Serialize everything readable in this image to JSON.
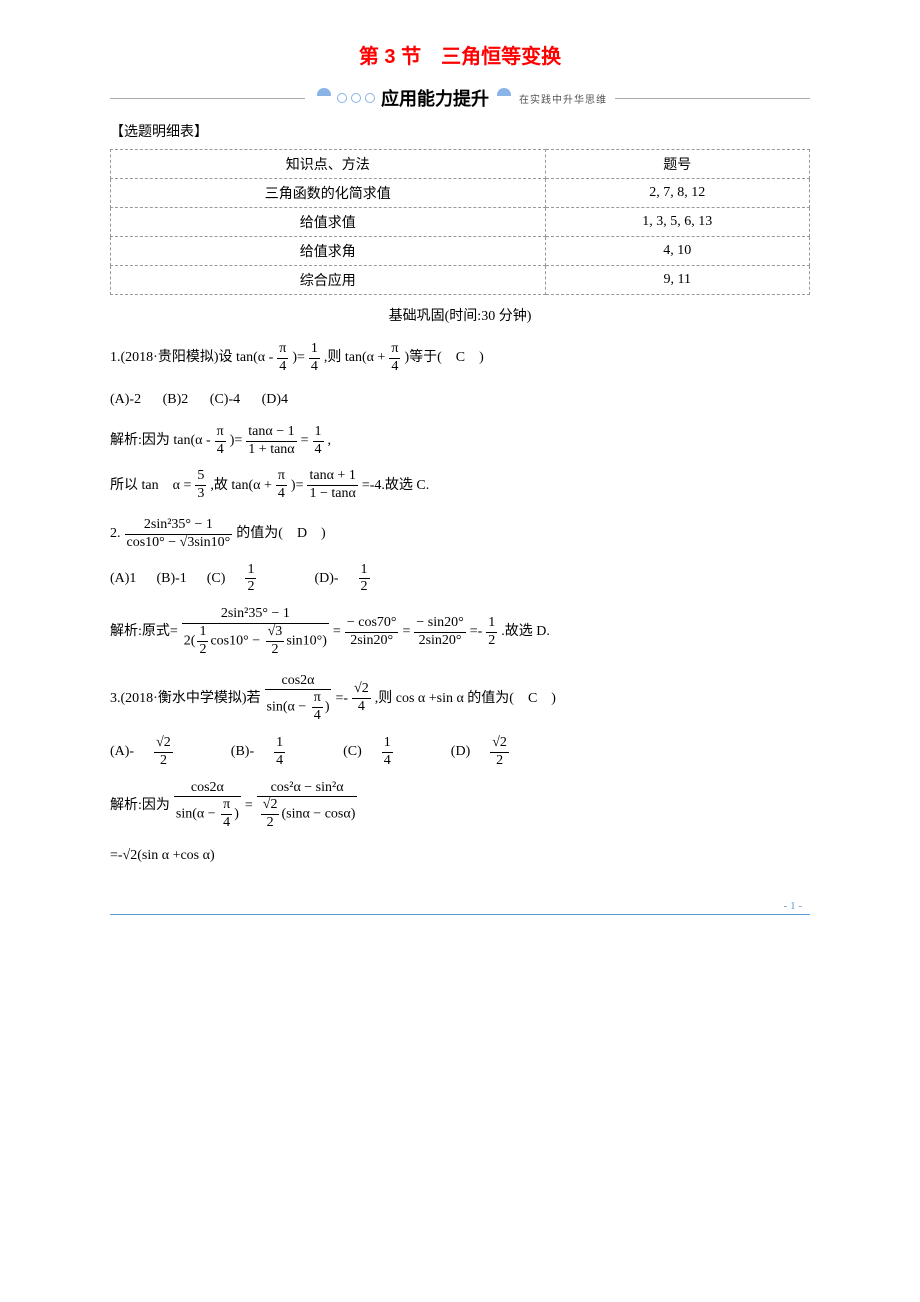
{
  "title": "第 3 节　三角恒等变换",
  "banner": {
    "main": "应用能力提升",
    "sub": "在实践中升华思维"
  },
  "selection_label": "【选题明细表】",
  "table": {
    "headers": [
      "知识点、方法",
      "题号"
    ],
    "rows": [
      [
        "三角函数的化简求值",
        "2, 7, 8, 12"
      ],
      [
        "给值求值",
        "1, 3, 5, 6, 13"
      ],
      [
        "给值求角",
        "4, 10"
      ],
      [
        "综合应用",
        "9, 11"
      ]
    ]
  },
  "subhead": "基础巩固(时间:30 分钟)",
  "q1": {
    "prefix": "1.(2018·贵阳模拟)设 tan(α -",
    "frac1n": "π",
    "frac1d": "4",
    "mid1": ")=",
    "frac2n": "1",
    "frac2d": "4",
    "mid2": ",则 tan(α +",
    "frac3n": "π",
    "frac3d": "4",
    "suffix": ")等于(　C　)",
    "choices": [
      "(A)-2",
      "(B)2",
      "(C)-4",
      "(D)4"
    ],
    "sol1_a": "解析:因为 tan(α -",
    "sol1_f1n": "π",
    "sol1_f1d": "4",
    "sol1_b": ")=",
    "sol1_f2n": "tanα − 1",
    "sol1_f2d": "1 + tanα",
    "sol1_c": "=",
    "sol1_f3n": "1",
    "sol1_f3d": "4",
    "sol1_d": ",",
    "sol2_a": "所以 tan　α =",
    "sol2_f1n": "5",
    "sol2_f1d": "3",
    "sol2_b": ",故 tan(α +",
    "sol2_f2n": "π",
    "sol2_f2d": "4",
    "sol2_c": ")=",
    "sol2_f3n": "tanα + 1",
    "sol2_f3d": "1 − tanα",
    "sol2_d": "=-4.故选 C."
  },
  "q2": {
    "prefix": "2.",
    "fracTopN": "2sin²35° − 1",
    "fracTopD": "cos10° − √3sin10°",
    "suffix": "的值为(　D　)",
    "choices_ab": [
      "(A)1",
      "(B)-1"
    ],
    "cC": "(C)",
    "cCn": "1",
    "cCd": "2",
    "cD": "(D)-",
    "cDn": "1",
    "cDd": "2",
    "sol_a": "解析:原式=",
    "sol_f1n": "2sin²35° − 1",
    "sol_f1d_a": "2(",
    "sol_f1d_f1n": "1",
    "sol_f1d_f1d": "2",
    "sol_f1d_b": "cos10° − ",
    "sol_f1d_f2n": "√3",
    "sol_f1d_f2d": "2",
    "sol_f1d_c": "sin10°)",
    "sol_b": "=",
    "sol_f2n": "− cos70°",
    "sol_f2d": "2sin20°",
    "sol_c": "=",
    "sol_f3n": "− sin20°",
    "sol_f3d": "2sin20°",
    "sol_d": "=-",
    "sol_f4n": "1",
    "sol_f4d": "2",
    "sol_e": ".故选 D."
  },
  "q3": {
    "prefix": "3.(2018·衡水中学模拟)若",
    "outerN": "cos2α",
    "innerA": "sin(α − ",
    "innerFn": "π",
    "innerFd": "4",
    "innerB": ")",
    "mid": "=-",
    "rhsN": "√2",
    "rhsD": "4",
    "suffix": ",则 cos α +sin α 的值为(　C　)",
    "cA": "(A)-",
    "cAn": "√2",
    "cAd": "2",
    "cB": "(B)-",
    "cBn": "1",
    "cBd": "4",
    "cC": "(C)",
    "cCn": "1",
    "cCd": "4",
    "cD": "(D)",
    "cDn": "√2",
    "cDd": "2",
    "sol_a": "解析:因为",
    "sol_lhsN": "cos2α",
    "sol_lhsD_a": "sin(α − ",
    "sol_lhsD_fn": "π",
    "sol_lhsD_fd": "4",
    "sol_lhsD_b": ")",
    "sol_b": "=",
    "sol_rhsN": "cos²α − sin²α",
    "sol_rhsD_fn": "√2",
    "sol_rhsD_fd": "2",
    "sol_rhsD_b": "(sinα − cosα)",
    "sol_line2": "=-√2(sin α +cos α)"
  },
  "page": "- 1 -"
}
